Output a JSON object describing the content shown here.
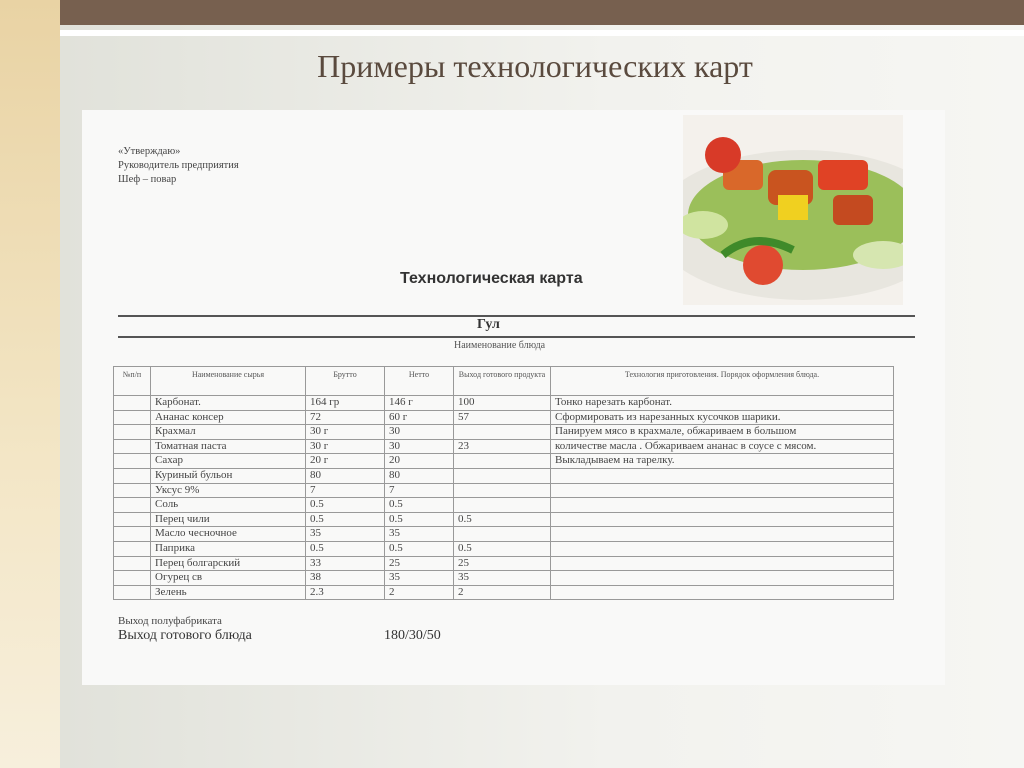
{
  "slide_title": "Примеры технологических карт",
  "document": {
    "approval": [
      "«Утверждаю»",
      "Руководитель предприятия",
      "Шеф – повар"
    ],
    "title": "Технологическая карта",
    "dish_name": "Гул",
    "dish_name_label": "Наименование блюда",
    "columns": [
      "№п/п",
      "Наименование сырья",
      "Брутто",
      "Нетто",
      "Выход готового продукта",
      "Технология приготовления. Порядок оформления блюда."
    ],
    "rows": [
      {
        "name": "Карбонат.",
        "brutto": "164 гр",
        "netto": "146 г",
        "output": "100",
        "tech": "Тонко нарезать карбонат."
      },
      {
        "name": "Ананас консер",
        "brutto": "72",
        "netto": "60 г",
        "output": "57",
        "tech": "Сформировать из нарезанных кусочков шарики."
      },
      {
        "name": "Крахмал",
        "brutto": "30 г",
        "netto": "30",
        "output": "",
        "tech": "Панируем мясо в крахмале, обжариваем в большом"
      },
      {
        "name": "Томатная паста",
        "brutto": "30 г",
        "netto": "30",
        "output": "23",
        "tech": "количестве масла . Обжариваем ананас в соусе  с мясом."
      },
      {
        "name": "Сахар",
        "brutto": "20 г",
        "netto": "20",
        "output": "",
        "tech": "Выкладываем на тарелку."
      },
      {
        "name": "Куриный бульон",
        "brutto": "80",
        "netto": "80",
        "output": "",
        "tech": ""
      },
      {
        "name": "Уксус 9%",
        "brutto": "7",
        "netto": "7",
        "output": "",
        "tech": ""
      },
      {
        "name": "Соль",
        "brutto": "0.5",
        "netto": "0.5",
        "output": "",
        "tech": ""
      },
      {
        "name": "Перец чили",
        "brutto": "0.5",
        "netto": "0.5",
        "output": "0.5",
        "tech": ""
      },
      {
        "name": "Масло чесночное",
        "brutto": "35",
        "netto": "35",
        "output": "",
        "tech": ""
      },
      {
        "name": "Паприка",
        "brutto": "0.5",
        "netto": "0.5",
        "output": "0.5",
        "tech": ""
      },
      {
        "name": "Перец болгарский",
        "brutto": "33",
        "netto": "25",
        "output": "25",
        "tech": ""
      },
      {
        "name": "Огурец св",
        "brutto": "38",
        "netto": "35",
        "output": "35",
        "tech": ""
      },
      {
        "name": "Зелень",
        "brutto": "2.3",
        "netto": "2",
        "output": "2",
        "tech": ""
      }
    ],
    "semi_output_label": "Выход полуфабриката",
    "final_output_label": "Выход готового блюда",
    "final_output_value": "180/30/50"
  }
}
